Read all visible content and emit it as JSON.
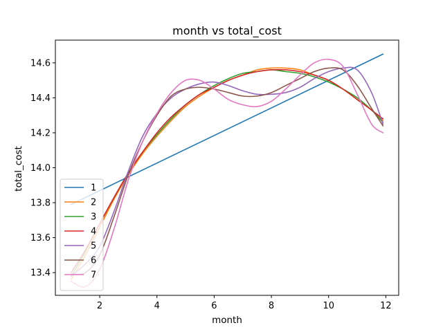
{
  "chart_data": {
    "type": "line",
    "title": "month vs total_cost",
    "xlabel": "month",
    "ylabel": "total_cost",
    "xlim": [
      0.45,
      12.45
    ],
    "ylim": [
      13.27,
      14.73
    ],
    "xticks": [
      2,
      4,
      6,
      8,
      10,
      12
    ],
    "yticks": [
      13.4,
      13.6,
      13.8,
      14.0,
      14.2,
      14.4,
      14.6
    ],
    "ytick_labels": [
      "13.4",
      "13.6",
      "13.8",
      "14.0",
      "14.2",
      "14.4",
      "14.6"
    ],
    "grid": false,
    "legend_position": "lower-left",
    "series": [
      {
        "name": "1",
        "color": "#1f77b4",
        "x": [
          1,
          11.9
        ],
        "y": [
          13.79,
          14.65
        ]
      },
      {
        "name": "2",
        "color": "#ff7f0e",
        "x": [
          1,
          1.5,
          2,
          2.5,
          3,
          3.5,
          4,
          4.5,
          5,
          5.5,
          6,
          6.5,
          7,
          7.5,
          8,
          8.5,
          9,
          9.5,
          10,
          10.5,
          11,
          11.5,
          11.9
        ],
        "y": [
          13.36,
          13.5,
          13.66,
          13.82,
          13.96,
          14.08,
          14.18,
          14.27,
          14.35,
          14.41,
          14.46,
          14.5,
          14.53,
          14.56,
          14.57,
          14.57,
          14.56,
          14.53,
          14.5,
          14.45,
          14.39,
          14.33,
          14.27
        ]
      },
      {
        "name": "3",
        "color": "#2ca02c",
        "x": [
          1,
          1.5,
          2,
          2.5,
          3,
          3.5,
          4,
          4.5,
          5,
          5.5,
          6,
          6.5,
          7,
          7.5,
          8,
          8.5,
          9,
          9.5,
          10,
          10.5,
          11,
          11.5,
          11.9
        ],
        "y": [
          13.38,
          13.52,
          13.68,
          13.83,
          13.97,
          14.09,
          14.19,
          14.28,
          14.36,
          14.42,
          14.47,
          14.51,
          14.54,
          14.55,
          14.56,
          14.55,
          14.54,
          14.52,
          14.49,
          14.45,
          14.4,
          14.33,
          14.26
        ]
      },
      {
        "name": "4",
        "color": "#d62728",
        "x": [
          1,
          1.5,
          2,
          2.5,
          3,
          3.5,
          4,
          4.5,
          5,
          5.5,
          6,
          6.5,
          7,
          7.5,
          8,
          8.5,
          9,
          9.5,
          10,
          10.5,
          11,
          11.5,
          11.9
        ],
        "y": [
          13.4,
          13.53,
          13.68,
          13.83,
          13.97,
          14.09,
          14.2,
          14.29,
          14.36,
          14.42,
          14.46,
          14.5,
          14.53,
          14.55,
          14.56,
          14.56,
          14.55,
          14.53,
          14.5,
          14.45,
          14.39,
          14.33,
          14.28
        ]
      },
      {
        "name": "5",
        "color": "#9467bd",
        "x": [
          1,
          1.5,
          2,
          2.5,
          3,
          3.5,
          4,
          4.5,
          5,
          5.5,
          6,
          6.5,
          7,
          7.5,
          8,
          8.5,
          9,
          9.5,
          10,
          10.5,
          11,
          11.5,
          11.9
        ],
        "y": [
          13.38,
          13.45,
          13.55,
          13.75,
          13.98,
          14.18,
          14.31,
          14.4,
          14.45,
          14.48,
          14.49,
          14.47,
          14.44,
          14.42,
          14.42,
          14.43,
          14.46,
          14.51,
          14.55,
          14.57,
          14.56,
          14.43,
          14.25
        ]
      },
      {
        "name": "6",
        "color": "#8c564b",
        "x": [
          1,
          1.5,
          2,
          2.5,
          3,
          3.5,
          4,
          4.5,
          5,
          5.5,
          6,
          6.5,
          7,
          7.5,
          8,
          8.5,
          9,
          9.5,
          10,
          10.5,
          11,
          11.5,
          11.9
        ],
        "y": [
          13.39,
          13.4,
          13.5,
          13.72,
          13.96,
          14.15,
          14.3,
          14.41,
          14.45,
          14.46,
          14.45,
          14.43,
          14.41,
          14.41,
          14.43,
          14.47,
          14.51,
          14.55,
          14.57,
          14.56,
          14.47,
          14.34,
          14.24
        ]
      },
      {
        "name": "7",
        "color": "#e377c2",
        "x": [
          1,
          1.5,
          2,
          2.5,
          3,
          3.5,
          4,
          4.5,
          5,
          5.5,
          6,
          6.5,
          7,
          7.5,
          8,
          8.5,
          9,
          9.5,
          10,
          10.5,
          11,
          11.5,
          11.9
        ],
        "y": [
          13.35,
          13.32,
          13.42,
          13.65,
          13.93,
          14.15,
          14.31,
          14.43,
          14.5,
          14.5,
          14.45,
          14.39,
          14.36,
          14.35,
          14.38,
          14.45,
          14.53,
          14.6,
          14.62,
          14.58,
          14.42,
          14.25,
          14.2
        ]
      }
    ]
  }
}
